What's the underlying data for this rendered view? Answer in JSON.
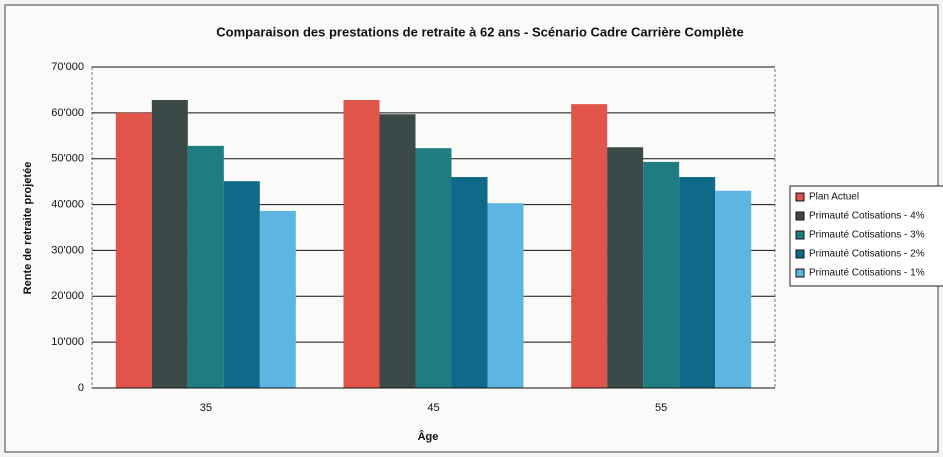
{
  "chart_data": {
    "type": "bar",
    "title": "Comparaison des prestations de retraite à 62 ans - Scénario Cadre Carrière Complète",
    "x_label": "Âge",
    "y_label": "Rente de retraite projetée",
    "categories": [
      "35",
      "45",
      "55"
    ],
    "series": [
      {
        "name": "Plan Actuel",
        "color": "#e0544a",
        "values": [
          60000,
          62800,
          61900
        ]
      },
      {
        "name": "Primauté Cotisations - 4%",
        "color": "#3b4a48",
        "values": [
          62800,
          59700,
          52500
        ]
      },
      {
        "name": "Primauté Cotisations - 3%",
        "color": "#1f7d82",
        "values": [
          52800,
          52300,
          49300
        ]
      },
      {
        "name": "Primauté Cotisations - 2%",
        "color": "#0f6a8a",
        "values": [
          45100,
          46000,
          46000
        ]
      },
      {
        "name": "Primauté Cotisations - 1%",
        "color": "#5db6e2",
        "values": [
          38600,
          40300,
          43000
        ]
      }
    ],
    "ylim": [
      0,
      70000
    ],
    "yticks": [
      0,
      {
        "value": 10000,
        "label": "10'000"
      },
      {
        "value": 20000,
        "label": "20'000"
      },
      {
        "value": 30000,
        "label": "30'000"
      },
      {
        "value": 40000,
        "label": "40'000"
      },
      {
        "value": 50000,
        "label": "50'000"
      },
      {
        "value": 60000,
        "label": "60'000"
      },
      {
        "value": 70000,
        "label": "70'000"
      }
    ],
    "grid": true,
    "legend": "right"
  }
}
